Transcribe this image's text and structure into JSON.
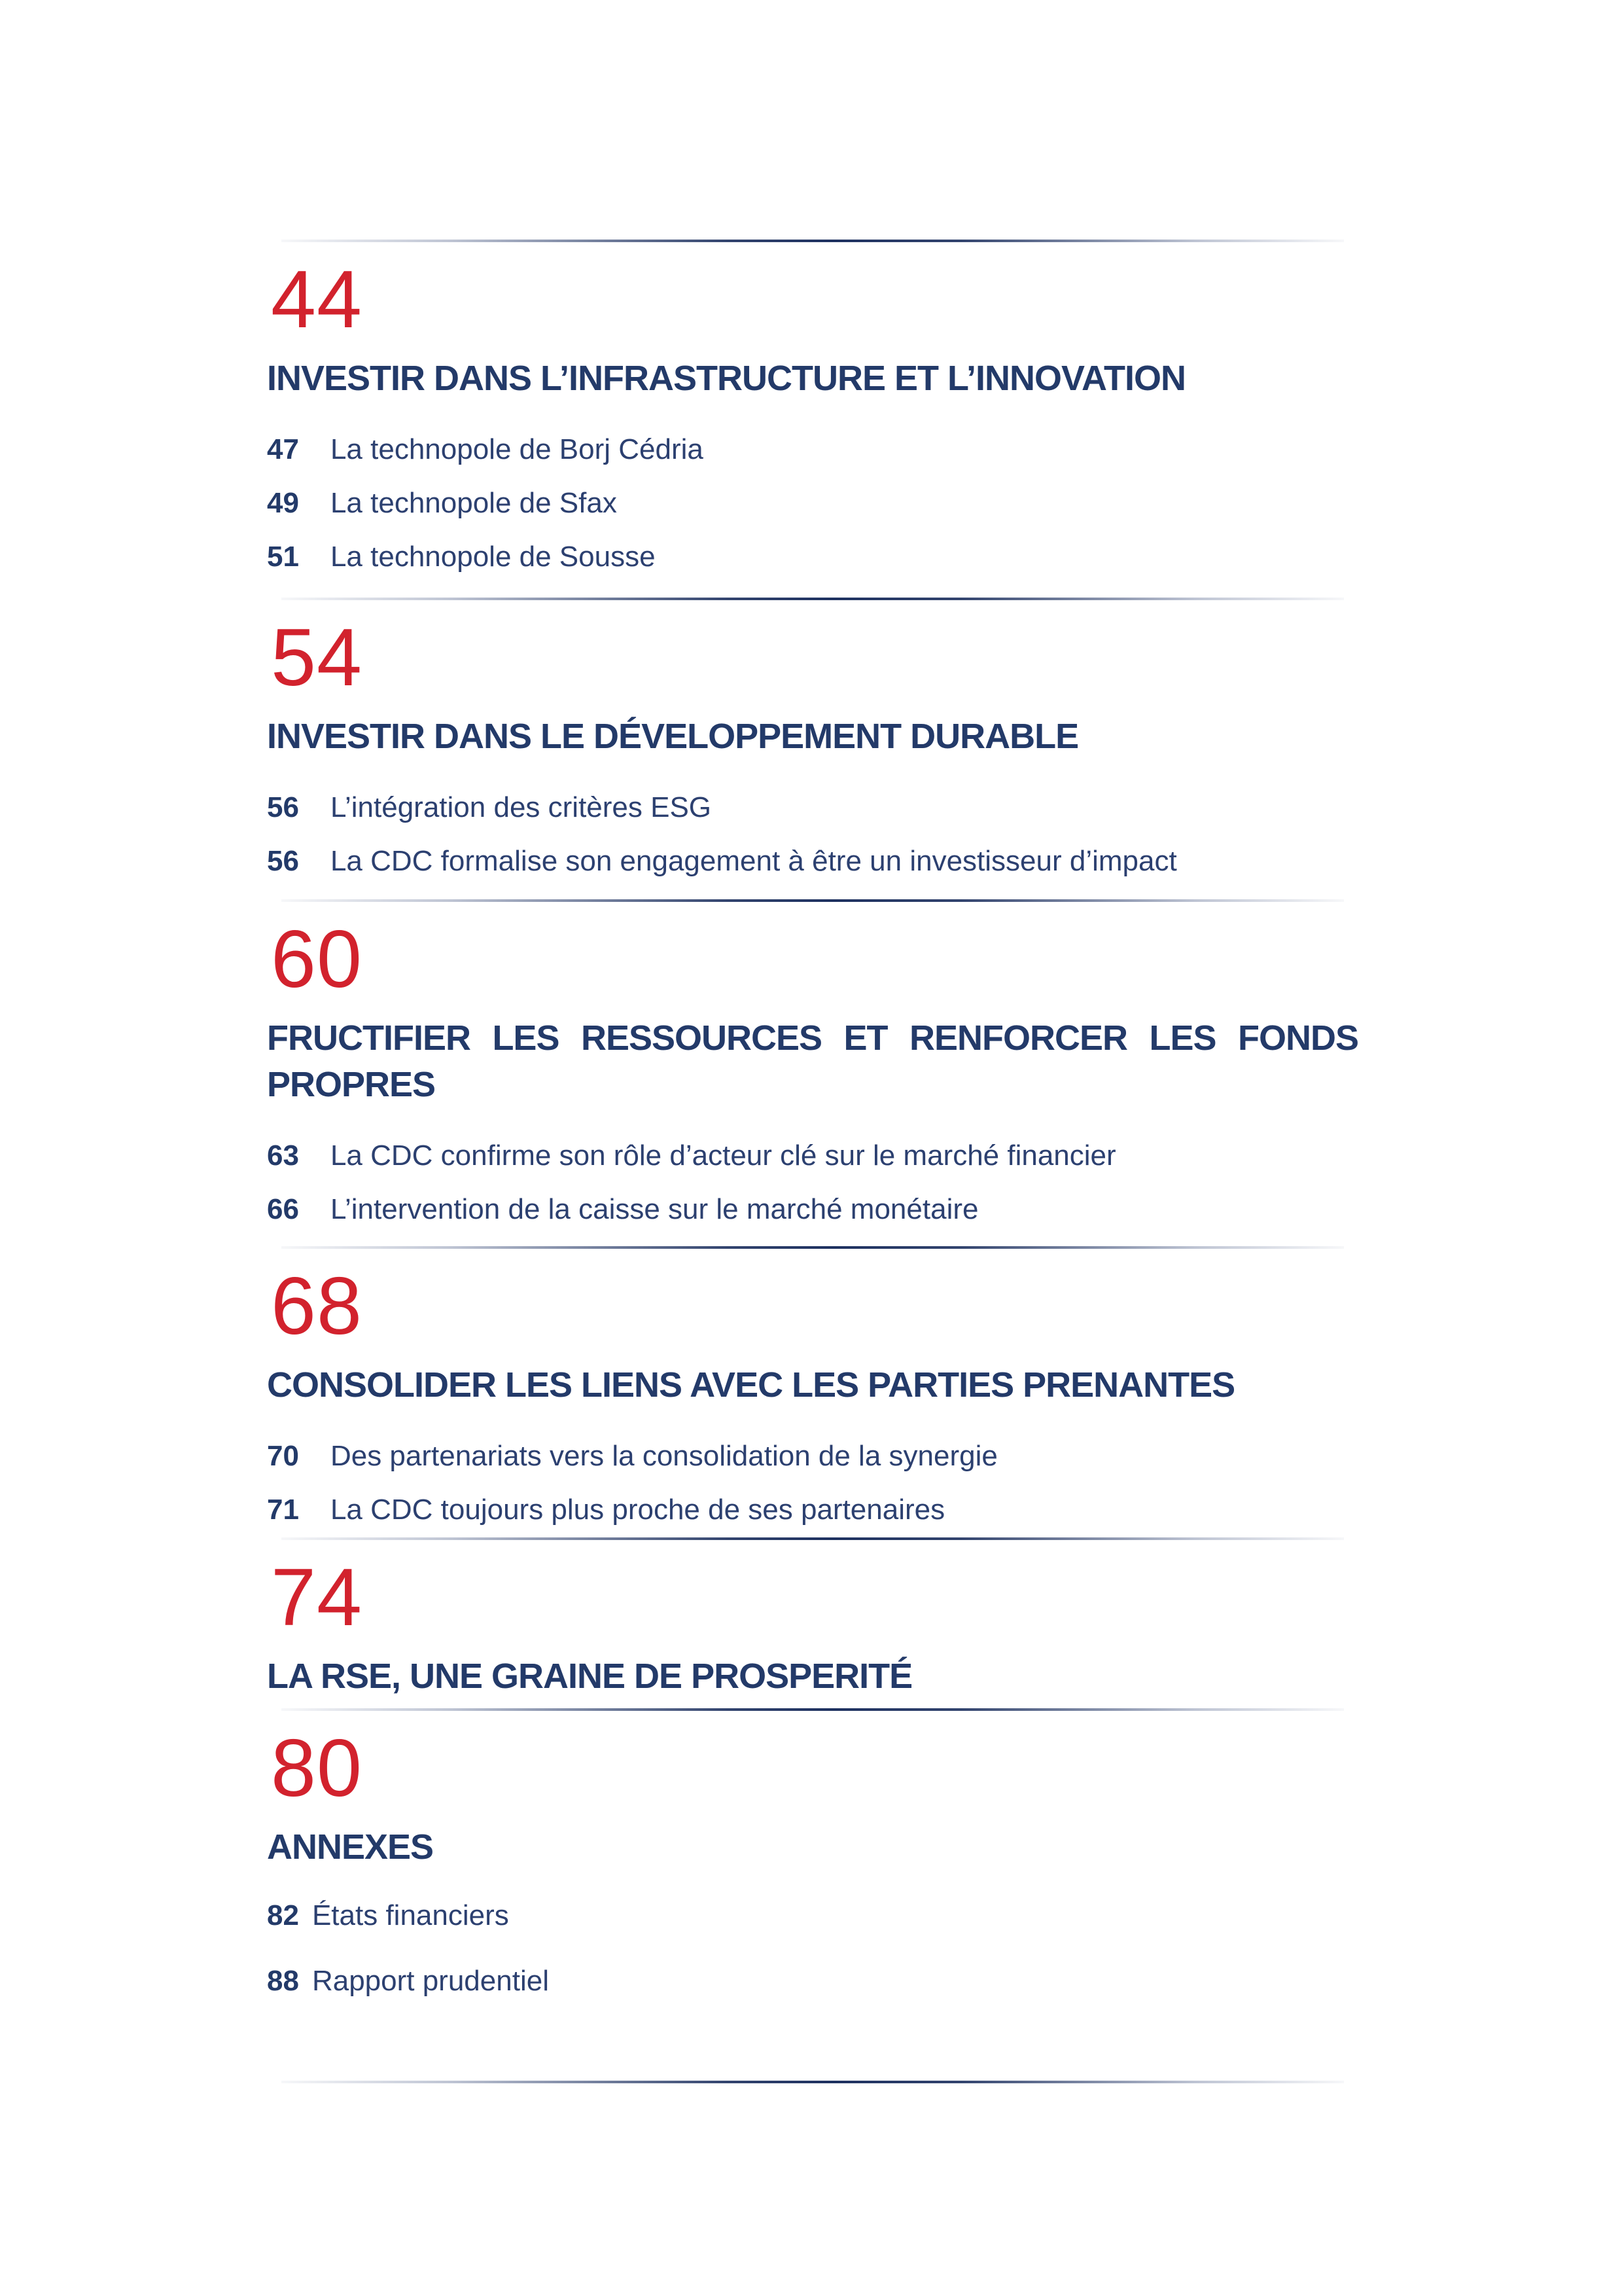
{
  "page": {
    "background": "#ffffff",
    "accent_red": "#d2222d",
    "navy": "#233a69",
    "divider_color": "#1e3160"
  },
  "toc": {
    "sections": [
      {
        "number": "44",
        "title": "INVESTIR DANS L’INFRASTRUCTURE ET L’INNOVATION",
        "items": [
          {
            "num": "47",
            "label": "La technopole de Borj Cédria"
          },
          {
            "num": "49",
            "label": "La technopole de Sfax"
          },
          {
            "num": "51",
            "label": "La technopole de Sousse"
          }
        ]
      },
      {
        "number": "54",
        "title": "INVESTIR DANS LE DÉVELOPPEMENT DURABLE",
        "items": [
          {
            "num": "56",
            "label": "L’intégration des critères ESG"
          },
          {
            "num": "56",
            "label": "La CDC formalise son engagement à être un investisseur d’impact"
          }
        ]
      },
      {
        "number": "60",
        "title": "FRUCTIFIER LES RESSOURCES ET RENFORCER LES FONDS PROPRES",
        "items": [
          {
            "num": "63",
            "label": "La CDC confirme son rôle d’acteur clé sur le marché financier"
          },
          {
            "num": "66",
            "label": "L’intervention de la caisse sur le marché monétaire"
          }
        ]
      },
      {
        "number": "68",
        "title": "CONSOLIDER LES LIENS AVEC LES PARTIES PRENANTES",
        "items": [
          {
            "num": "70",
            "label": "Des partenariats vers la consolidation de la synergie"
          },
          {
            "num": "71",
            "label": "La CDC toujours plus proche de ses partenaires"
          }
        ]
      },
      {
        "number": "74",
        "title": "LA RSE, UNE GRAINE DE PROSPERITÉ",
        "items": []
      },
      {
        "number": "80",
        "title": "ANNEXES",
        "items": [
          {
            "num": "82",
            "label": "États financiers"
          },
          {
            "num": "88",
            "label": "Rapport prudentiel"
          }
        ]
      }
    ]
  }
}
